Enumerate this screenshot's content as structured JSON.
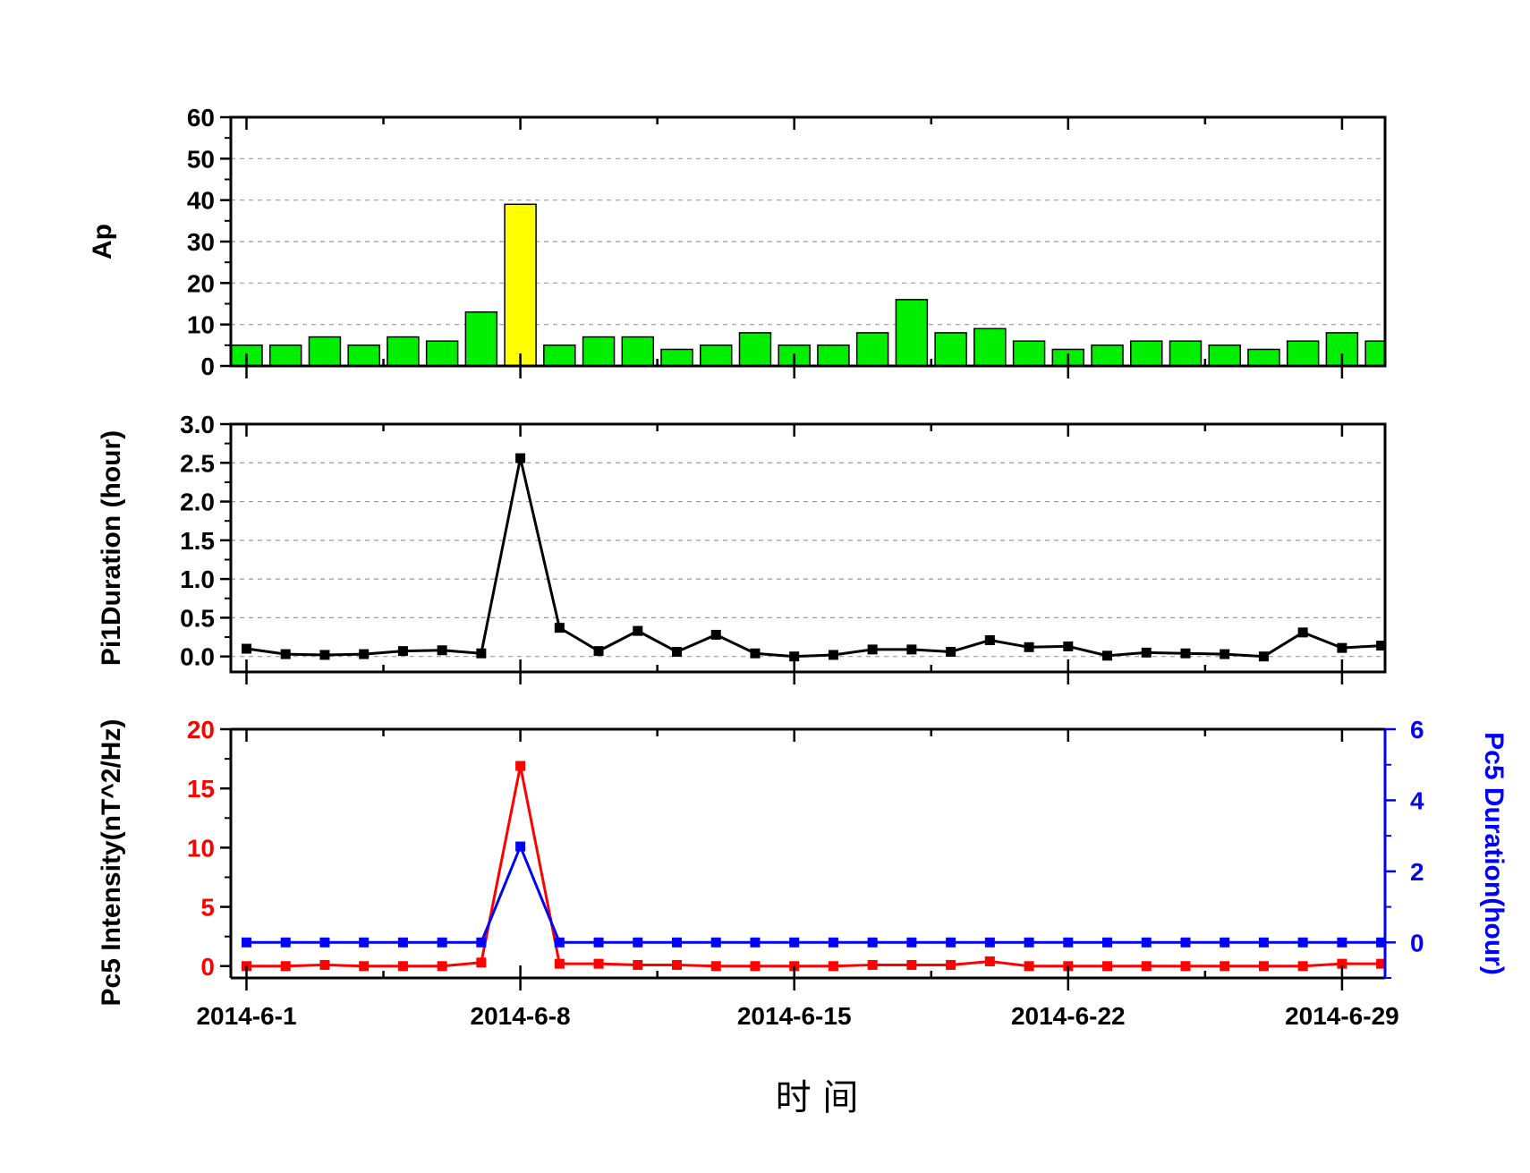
{
  "chart_data": [
    {
      "type": "bar",
      "ylabel": "Ap",
      "ylim": [
        0,
        60
      ],
      "yticks": [
        0,
        10,
        20,
        30,
        40,
        50,
        60
      ],
      "ytick_labels": [
        "0",
        "10",
        "20",
        "30",
        "40",
        "50",
        "60"
      ],
      "grid": "horizontal dashed",
      "x": [
        1,
        2,
        3,
        4,
        5,
        6,
        7,
        8,
        9,
        10,
        11,
        12,
        13,
        14,
        15,
        16,
        17,
        18,
        19,
        20,
        21,
        22,
        23,
        24,
        25,
        26,
        27,
        28,
        29,
        30
      ],
      "values": [
        5,
        5,
        7,
        5,
        7,
        6,
        13,
        39,
        5,
        7,
        7,
        4,
        5,
        8,
        5,
        5,
        8,
        16,
        8,
        9,
        6,
        4,
        5,
        6,
        6,
        5,
        4,
        6,
        8,
        6
      ],
      "colors": {
        "default": "#00ee00",
        "highlight": "#ffff00",
        "outline": "#000000"
      },
      "highlight_x": 8
    },
    {
      "type": "line",
      "ylabel": "Pi1Duration (hour)",
      "ylim": [
        -0.2,
        3.0
      ],
      "yticks": [
        0,
        0.5,
        1.0,
        1.5,
        2.0,
        2.5,
        3.0
      ],
      "ytick_labels": [
        "0.0",
        "0.5",
        "1.0",
        "1.5",
        "2.0",
        "2.5",
        "3.0"
      ],
      "grid": "horizontal dashed",
      "x": [
        1,
        2,
        3,
        4,
        5,
        6,
        7,
        8,
        9,
        10,
        11,
        12,
        13,
        14,
        15,
        16,
        17,
        18,
        19,
        20,
        21,
        22,
        23,
        24,
        25,
        26,
        27,
        28,
        29,
        30
      ],
      "series": [
        {
          "values": [
            0.1,
            0.03,
            0.02,
            0.03,
            0.07,
            0.08,
            0.04,
            2.56,
            0.37,
            0.07,
            0.33,
            0.06,
            0.28,
            0.04,
            0.0,
            0.02,
            0.09,
            0.09,
            0.06,
            0.21,
            0.12,
            0.13,
            0.01,
            0.05,
            0.04,
            0.03,
            0.0,
            0.31,
            0.11,
            0.14
          ],
          "color": "#000000"
        }
      ]
    },
    {
      "type": "line",
      "ylabel": "Pc5 Intensity(nT^2/Hz)",
      "y2label": "Pc5 Duration(hour)",
      "ylim": [
        -1,
        20
      ],
      "yticks": [
        0,
        5,
        10,
        15,
        20
      ],
      "ytick_labels": [
        "0",
        "5",
        "10",
        "15",
        "20"
      ],
      "y2lim": [
        -1,
        6
      ],
      "y2ticks": [
        0,
        2,
        4,
        6
      ],
      "y2tick_labels": [
        "0",
        "2",
        "4",
        "6"
      ],
      "xticks": [
        1,
        8,
        15,
        22,
        29
      ],
      "xtick_labels": [
        "2014-6-1",
        "2014-6-8",
        "2014-6-15",
        "2014-6-22",
        "2014-6-29"
      ],
      "xlabel": "时 间",
      "x": [
        1,
        2,
        3,
        4,
        5,
        6,
        7,
        8,
        9,
        10,
        11,
        12,
        13,
        14,
        15,
        16,
        17,
        18,
        19,
        20,
        21,
        22,
        23,
        24,
        25,
        26,
        27,
        28,
        29,
        30
      ],
      "series": [
        {
          "values": [
            0.0,
            0.0,
            0.1,
            0.0,
            0.0,
            0.0,
            0.3,
            16.9,
            0.2,
            0.2,
            0.1,
            0.1,
            0.0,
            0.0,
            0.0,
            0.0,
            0.1,
            0.1,
            0.1,
            0.4,
            0.0,
            0.0,
            0.0,
            0.0,
            0.0,
            0.0,
            0.0,
            0.0,
            0.2,
            0.2
          ],
          "color": "#ff0000",
          "axis": "left"
        },
        {
          "values": [
            0,
            0,
            0,
            0,
            0,
            0,
            0,
            2.7,
            0,
            0,
            0,
            0,
            0,
            0,
            0,
            0,
            0,
            0,
            0,
            0,
            0,
            0,
            0,
            0,
            0,
            0,
            0,
            0,
            0,
            0
          ],
          "color": "#0000ff",
          "axis": "right"
        }
      ]
    }
  ]
}
